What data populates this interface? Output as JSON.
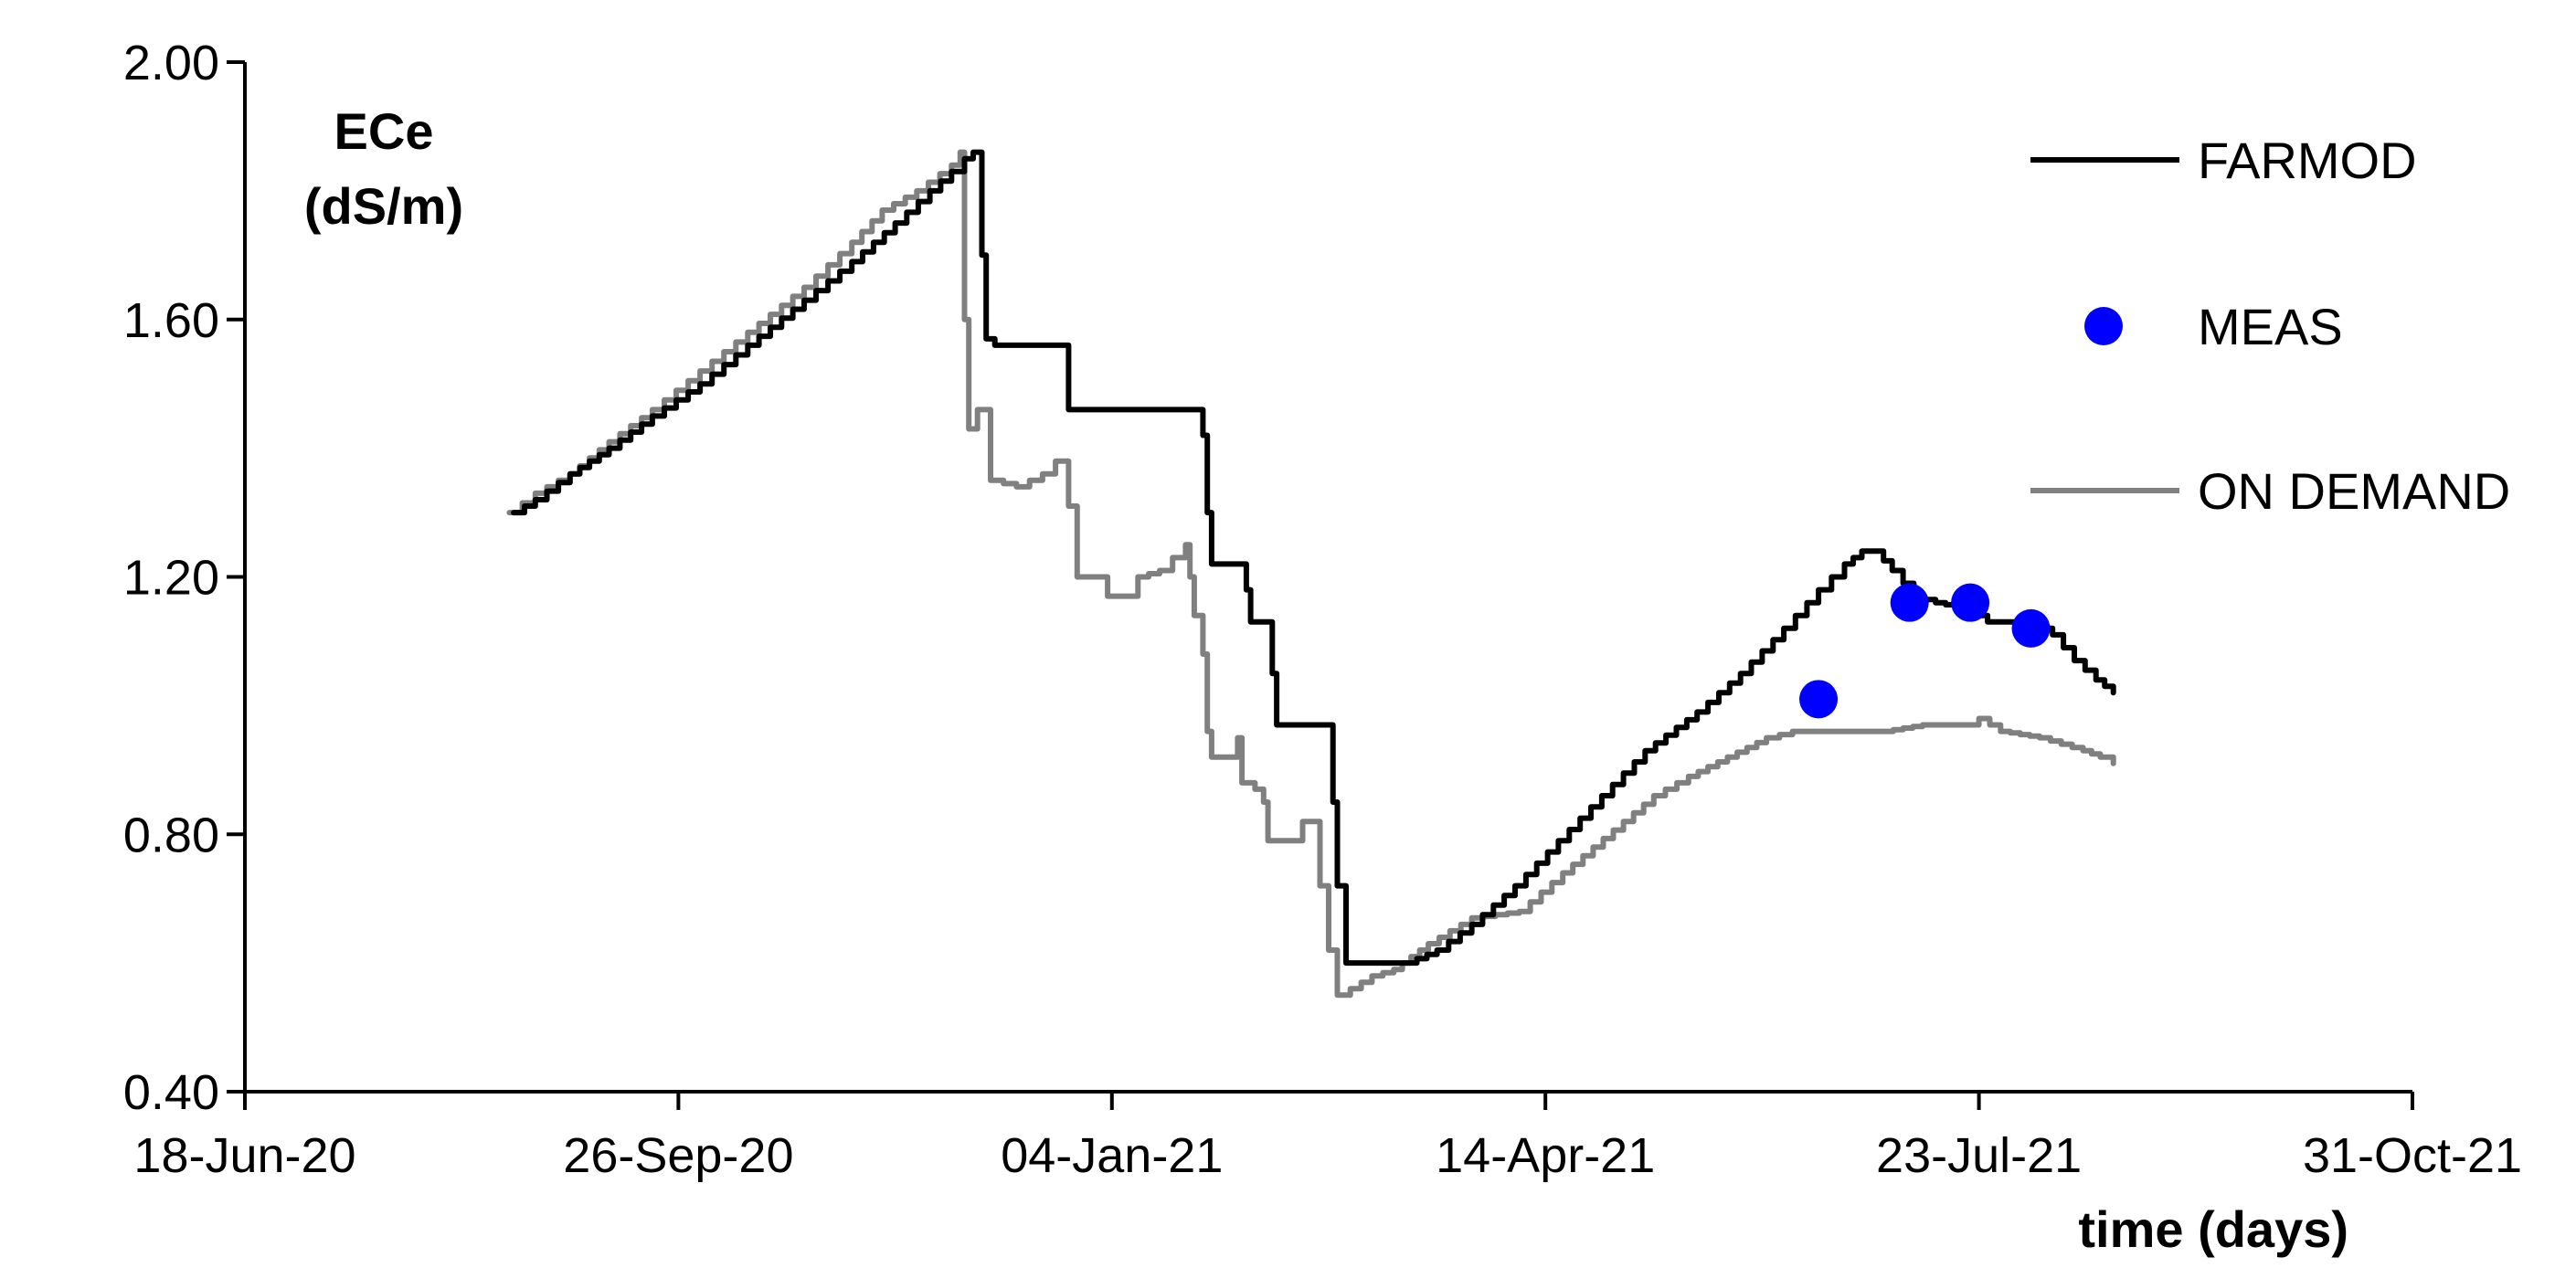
{
  "chart_data": {
    "type": "line",
    "title": "",
    "ylabel": [
      "ECe",
      "(dS/m)"
    ],
    "xlabel": "time (days)",
    "ylim": [
      0.4,
      2.0
    ],
    "yticks": [
      0.4,
      0.8,
      1.2,
      1.6,
      2.0
    ],
    "ytick_labels": [
      "0.40",
      "0.80",
      "1.20",
      "1.60",
      "2.00"
    ],
    "xlim": [
      "2020-06-18",
      "2021-10-31"
    ],
    "xticks": [
      "2020-06-18",
      "2020-09-26",
      "2021-01-04",
      "2021-04-14",
      "2021-07-23",
      "2021-10-31"
    ],
    "xtick_labels": [
      "18-Jun-20",
      "26-Sep-20",
      "04-Jan-21",
      "14-Apr-21",
      "23-Jul-21",
      "31-Oct-21"
    ],
    "grid": false,
    "legend_position": "top-right",
    "colors": {
      "FARMOD": "#000000",
      "MEAS": "#0000ff",
      "ON DEMAND": "#808080"
    },
    "series": [
      {
        "name": "FARMOD",
        "style": "line",
        "points": [
          [
            "2020-08-19",
            1.3
          ],
          [
            "2020-08-24",
            1.32
          ],
          [
            "2020-09-01",
            1.36
          ],
          [
            "2020-09-10",
            1.4
          ],
          [
            "2020-09-20",
            1.45
          ],
          [
            "2020-10-01",
            1.5
          ],
          [
            "2020-10-12",
            1.56
          ],
          [
            "2020-10-25",
            1.63
          ],
          [
            "2020-11-05",
            1.69
          ],
          [
            "2020-11-15",
            1.75
          ],
          [
            "2020-11-23",
            1.8
          ],
          [
            "2020-11-28",
            1.83
          ],
          [
            "2020-12-01",
            1.85
          ],
          [
            "2020-12-03",
            1.86
          ],
          [
            "2020-12-04",
            1.86
          ],
          [
            "2020-12-05",
            1.7
          ],
          [
            "2020-12-06",
            1.57
          ],
          [
            "2020-12-08",
            1.56
          ],
          [
            "2020-12-24",
            1.56
          ],
          [
            "2020-12-25",
            1.46
          ],
          [
            "2021-01-24",
            1.46
          ],
          [
            "2021-01-25",
            1.42
          ],
          [
            "2021-01-26",
            1.3
          ],
          [
            "2021-01-27",
            1.22
          ],
          [
            "2021-02-03",
            1.22
          ],
          [
            "2021-02-04",
            1.18
          ],
          [
            "2021-02-05",
            1.13
          ],
          [
            "2021-02-09",
            1.13
          ],
          [
            "2021-02-10",
            1.05
          ],
          [
            "2021-02-11",
            0.97
          ],
          [
            "2021-02-23",
            0.97
          ],
          [
            "2021-02-24",
            0.85
          ],
          [
            "2021-02-25",
            0.72
          ],
          [
            "2021-02-27",
            0.6
          ],
          [
            "2021-03-13",
            0.6
          ],
          [
            "2021-03-20",
            0.62
          ],
          [
            "2021-03-28",
            0.66
          ],
          [
            "2021-04-07",
            0.72
          ],
          [
            "2021-04-17",
            0.79
          ],
          [
            "2021-04-27",
            0.86
          ],
          [
            "2021-05-07",
            0.93
          ],
          [
            "2021-05-19",
            0.99
          ],
          [
            "2021-05-29",
            1.05
          ],
          [
            "2021-06-08",
            1.12
          ],
          [
            "2021-06-16",
            1.18
          ],
          [
            "2021-06-22",
            1.22
          ],
          [
            "2021-06-26",
            1.24
          ],
          [
            "2021-06-29",
            1.24
          ],
          [
            "2021-07-03",
            1.21
          ],
          [
            "2021-07-08",
            1.17
          ],
          [
            "2021-07-13",
            1.16
          ],
          [
            "2021-07-20",
            1.15
          ],
          [
            "2021-07-25",
            1.13
          ],
          [
            "2021-08-04",
            1.13
          ],
          [
            "2021-08-09",
            1.11
          ],
          [
            "2021-08-14",
            1.07
          ],
          [
            "2021-08-19",
            1.04
          ],
          [
            "2021-08-23",
            1.02
          ]
        ]
      },
      {
        "name": "MEAS",
        "style": "markers",
        "points": [
          [
            "2021-06-16",
            1.01
          ],
          [
            "2021-07-07",
            1.16
          ],
          [
            "2021-07-21",
            1.16
          ],
          [
            "2021-08-04",
            1.12
          ]
        ]
      },
      {
        "name": "ON DEMAND",
        "style": "line",
        "points": [
          [
            "2020-08-18",
            1.3
          ],
          [
            "2020-08-24",
            1.33
          ],
          [
            "2020-09-01",
            1.36
          ],
          [
            "2020-09-10",
            1.41
          ],
          [
            "2020-09-20",
            1.46
          ],
          [
            "2020-10-01",
            1.52
          ],
          [
            "2020-10-12",
            1.58
          ],
          [
            "2020-10-25",
            1.65
          ],
          [
            "2020-11-05",
            1.72
          ],
          [
            "2020-11-12",
            1.77
          ],
          [
            "2020-11-20",
            1.8
          ],
          [
            "2020-11-28",
            1.84
          ],
          [
            "2020-11-30",
            1.86
          ],
          [
            "2020-12-01",
            1.6
          ],
          [
            "2020-12-02",
            1.43
          ],
          [
            "2020-12-04",
            1.46
          ],
          [
            "2020-12-06",
            1.46
          ],
          [
            "2020-12-07",
            1.35
          ],
          [
            "2020-12-13",
            1.34
          ],
          [
            "2020-12-19",
            1.36
          ],
          [
            "2020-12-22",
            1.38
          ],
          [
            "2020-12-24",
            1.38
          ],
          [
            "2020-12-25",
            1.31
          ],
          [
            "2020-12-27",
            1.2
          ],
          [
            "2020-12-31",
            1.2
          ],
          [
            "2021-01-03",
            1.17
          ],
          [
            "2021-01-07",
            1.17
          ],
          [
            "2021-01-10",
            1.2
          ],
          [
            "2021-01-15",
            1.21
          ],
          [
            "2021-01-18",
            1.23
          ],
          [
            "2021-01-21",
            1.25
          ],
          [
            "2021-01-22",
            1.2
          ],
          [
            "2021-01-23",
            1.14
          ],
          [
            "2021-01-25",
            1.08
          ],
          [
            "2021-01-26",
            0.96
          ],
          [
            "2021-01-27",
            0.92
          ],
          [
            "2021-02-01",
            0.92
          ],
          [
            "2021-02-02",
            0.95
          ],
          [
            "2021-02-03",
            0.88
          ],
          [
            "2021-02-06",
            0.87
          ],
          [
            "2021-02-08",
            0.85
          ],
          [
            "2021-02-09",
            0.79
          ],
          [
            "2021-02-15",
            0.79
          ],
          [
            "2021-02-17",
            0.82
          ],
          [
            "2021-02-20",
            0.82
          ],
          [
            "2021-02-21",
            0.72
          ],
          [
            "2021-02-23",
            0.62
          ],
          [
            "2021-02-25",
            0.55
          ],
          [
            "2021-02-28",
            0.56
          ],
          [
            "2021-03-05",
            0.58
          ],
          [
            "2021-03-10",
            0.59
          ],
          [
            "2021-03-14",
            0.61
          ],
          [
            "2021-03-18",
            0.63
          ],
          [
            "2021-03-23",
            0.65
          ],
          [
            "2021-03-28",
            0.67
          ],
          [
            "2021-04-08",
            0.68
          ],
          [
            "2021-04-13",
            0.71
          ],
          [
            "2021-04-18",
            0.74
          ],
          [
            "2021-04-25",
            0.78
          ],
          [
            "2021-05-02",
            0.82
          ],
          [
            "2021-05-09",
            0.86
          ],
          [
            "2021-05-17",
            0.89
          ],
          [
            "2021-05-26",
            0.92
          ],
          [
            "2021-06-04",
            0.95
          ],
          [
            "2021-06-10",
            0.96
          ],
          [
            "2021-06-20",
            0.96
          ],
          [
            "2021-07-01",
            0.96
          ],
          [
            "2021-07-10",
            0.97
          ],
          [
            "2021-07-20",
            0.97
          ],
          [
            "2021-07-23",
            0.98
          ],
          [
            "2021-07-28",
            0.96
          ],
          [
            "2021-08-06",
            0.95
          ],
          [
            "2021-08-16",
            0.93
          ],
          [
            "2021-08-20",
            0.92
          ],
          [
            "2021-08-23",
            0.91
          ]
        ]
      }
    ]
  }
}
